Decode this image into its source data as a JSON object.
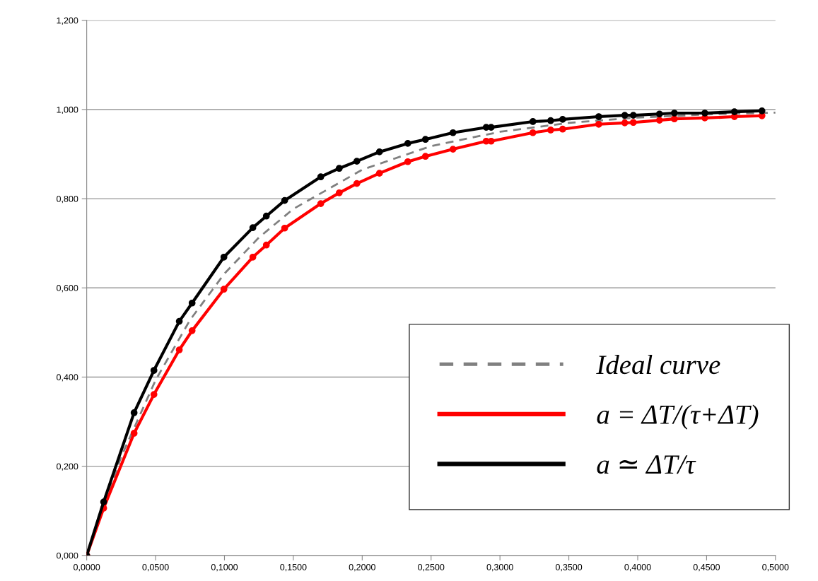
{
  "chart_data": {
    "type": "line",
    "xlim": [
      0,
      0.5
    ],
    "ylim": [
      0,
      1.2
    ],
    "xticks": [
      {
        "value": 0,
        "label": "0,0000"
      },
      {
        "value": 0.05,
        "label": "0,0500"
      },
      {
        "value": 0.1,
        "label": "0,1000"
      },
      {
        "value": 0.15,
        "label": "0,1500"
      },
      {
        "value": 0.2,
        "label": "0,2000"
      },
      {
        "value": 0.25,
        "label": "0,2500"
      },
      {
        "value": 0.3,
        "label": "0,3000"
      },
      {
        "value": 0.35,
        "label": "0,3500"
      },
      {
        "value": 0.4,
        "label": "0,4000"
      },
      {
        "value": 0.45,
        "label": "0,4500"
      },
      {
        "value": 0.5,
        "label": "0,5000"
      }
    ],
    "yticks": [
      {
        "value": 0,
        "label": "0,000"
      },
      {
        "value": 0.2,
        "label": "0,200"
      },
      {
        "value": 0.4,
        "label": "0,400"
      },
      {
        "value": 0.6,
        "label": "0,600"
      },
      {
        "value": 0.8,
        "label": "0,800"
      },
      {
        "value": 1.0,
        "label": "1,000"
      },
      {
        "value": 1.2,
        "label": "1,200"
      }
    ],
    "grid": "y",
    "legend": "bottom right",
    "series": [
      {
        "name": "Ideal curve",
        "color": "#808080",
        "line_style": "dashed",
        "marker": "none",
        "x": [
          0,
          0.025,
          0.05,
          0.075,
          0.1,
          0.125,
          0.15,
          0.2,
          0.25,
          0.3,
          0.35,
          0.4,
          0.45,
          0.5
        ],
        "values": [
          0,
          0.221,
          0.393,
          0.528,
          0.632,
          0.713,
          0.777,
          0.865,
          0.918,
          0.95,
          0.97,
          0.982,
          0.989,
          0.993
        ]
      },
      {
        "name": "a = ΔT/(τ+ΔT)",
        "color": "#ff0000",
        "line_style": "solid",
        "marker": "circle",
        "x": [
          0,
          0.0123,
          0.0344,
          0.0488,
          0.0672,
          0.0765,
          0.0996,
          0.1206,
          0.1304,
          0.1437,
          0.1699,
          0.1833,
          0.1961,
          0.2125,
          0.2331,
          0.2459,
          0.2659,
          0.29,
          0.2936,
          0.3239,
          0.3368,
          0.3455,
          0.3717,
          0.3906,
          0.3968,
          0.4158,
          0.4266,
          0.4487,
          0.4702,
          0.4902
        ],
        "values": [
          0,
          0.106,
          0.274,
          0.361,
          0.461,
          0.504,
          0.597,
          0.669,
          0.696,
          0.734,
          0.789,
          0.813,
          0.834,
          0.857,
          0.883,
          0.895,
          0.911,
          0.929,
          0.929,
          0.948,
          0.954,
          0.956,
          0.967,
          0.97,
          0.971,
          0.976,
          0.979,
          0.981,
          0.984,
          0.986
        ]
      },
      {
        "name": "a ≃ ΔT/τ",
        "color": "#000000",
        "line_style": "solid",
        "marker": "circle",
        "x": [
          0,
          0.0123,
          0.0344,
          0.0488,
          0.0672,
          0.0765,
          0.0996,
          0.1206,
          0.1304,
          0.1437,
          0.1699,
          0.1833,
          0.1961,
          0.2125,
          0.2331,
          0.2459,
          0.2659,
          0.29,
          0.2936,
          0.3239,
          0.3368,
          0.3455,
          0.3717,
          0.3906,
          0.3968,
          0.4158,
          0.4266,
          0.4487,
          0.4702,
          0.4902
        ],
        "values": [
          0,
          0.12,
          0.32,
          0.415,
          0.525,
          0.566,
          0.669,
          0.735,
          0.761,
          0.796,
          0.849,
          0.868,
          0.884,
          0.905,
          0.924,
          0.933,
          0.948,
          0.96,
          0.96,
          0.973,
          0.975,
          0.978,
          0.984,
          0.987,
          0.987,
          0.99,
          0.992,
          0.992,
          0.995,
          0.997
        ]
      }
    ]
  }
}
